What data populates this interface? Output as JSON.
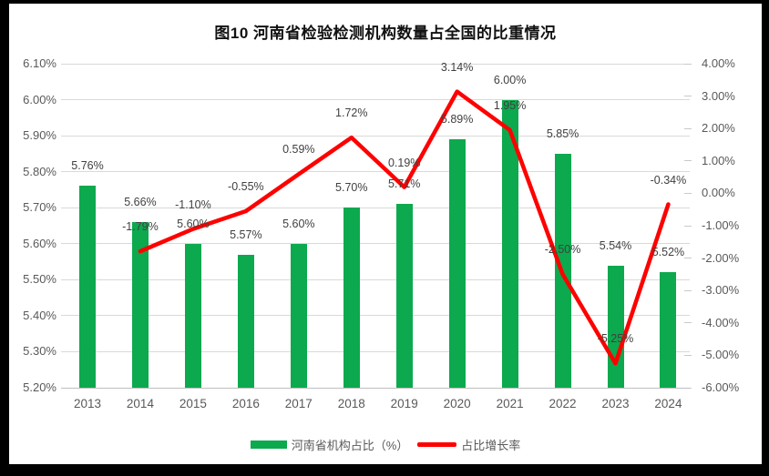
{
  "title": "图10  河南省检验检测机构数量占全国的比重情况",
  "legend": {
    "bar_label": "河南省机构占比（%）",
    "line_label": "占比增长率"
  },
  "colors": {
    "bar": "#0CA94E",
    "line": "#FF0000",
    "gridline": "#D9D9D9",
    "axis_line": "#BFBFBF",
    "axis_text": "#595959",
    "data_label_text": "#404040"
  },
  "chart_data": {
    "type": "bar",
    "subtype": "bar+line dual-axis combo",
    "title": "图10  河南省检验检测机构数量占全国的比重情况",
    "categories": [
      "2013",
      "2014",
      "2015",
      "2016",
      "2017",
      "2018",
      "2019",
      "2020",
      "2021",
      "2022",
      "2023",
      "2024"
    ],
    "series": [
      {
        "name": "河南省机构占比（%）",
        "type": "bar",
        "axis": "left",
        "values": [
          5.76,
          5.66,
          5.6,
          5.57,
          5.6,
          5.7,
          5.71,
          5.89,
          6.0,
          5.85,
          5.54,
          5.52
        ],
        "labels": [
          "5.76%",
          "5.66%",
          "5.60%",
          "5.57%",
          "5.60%",
          "5.70%",
          "5.71%",
          "5.89%",
          "6.00%",
          "5.85%",
          "5.54%",
          "5.52%"
        ]
      },
      {
        "name": "占比增长率",
        "type": "line",
        "axis": "right",
        "values": [
          null,
          -1.79,
          -1.1,
          -0.55,
          0.59,
          1.72,
          0.19,
          3.14,
          1.95,
          -2.5,
          -5.25,
          -0.34
        ],
        "labels": [
          null,
          "-1.79%",
          "-1.10%",
          "-0.55%",
          "0.59%",
          "1.72%",
          "0.19%",
          "3.14%",
          "1.95%",
          "-2.50%",
          "-5.25%",
          "-0.34%"
        ]
      }
    ],
    "left_axis": {
      "min": 5.2,
      "max": 6.1,
      "step": 0.1,
      "tick_labels": [
        "6.10%",
        "6.00%",
        "5.90%",
        "5.80%",
        "5.70%",
        "5.60%",
        "5.50%",
        "5.40%",
        "5.30%",
        "5.20%"
      ]
    },
    "right_axis": {
      "min": -6.0,
      "max": 4.0,
      "step": 1.0,
      "tick_labels": [
        "4.00%",
        "3.00%",
        "2.00%",
        "1.00%",
        "0.00%",
        "-1.00%",
        "-2.00%",
        "-3.00%",
        "-4.00%",
        "-5.00%",
        "-6.00%"
      ]
    },
    "grid": true,
    "legend_position": "bottom"
  }
}
